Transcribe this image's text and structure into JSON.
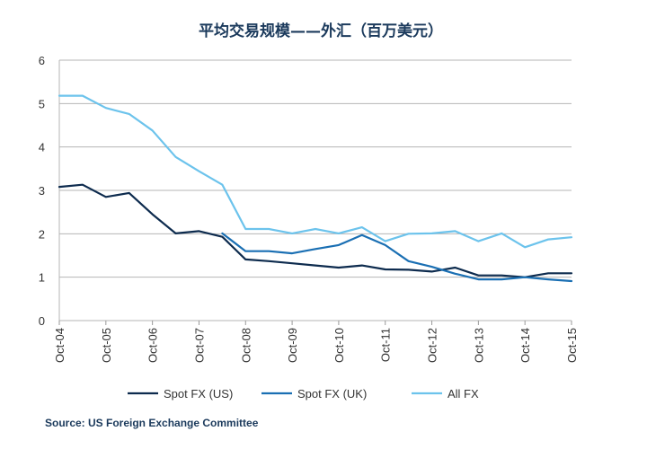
{
  "chart_data": {
    "type": "line",
    "title": "平均交易规模——外汇（百万美元）",
    "xlabel": "",
    "ylabel": "",
    "ylim": [
      0,
      6
    ],
    "yticks": [
      "0",
      "1",
      "2",
      "3",
      "4",
      "5",
      "6"
    ],
    "xlim": [
      0,
      11
    ],
    "xticks": [
      {
        "label": "Oct-04",
        "x": 0
      },
      {
        "label": "Oct-05",
        "x": 1
      },
      {
        "label": "Oct-06",
        "x": 2
      },
      {
        "label": "Oct-07",
        "x": 3
      },
      {
        "label": "Oct-08",
        "x": 4
      },
      {
        "label": "Oct-09",
        "x": 5
      },
      {
        "label": "Oct-10",
        "x": 6
      },
      {
        "label": "Oct-11",
        "x": 7
      },
      {
        "label": "Oct-12",
        "x": 8
      },
      {
        "label": "Oct-13",
        "x": 9
      },
      {
        "label": "Oct-14",
        "x": 10
      },
      {
        "label": "Oct-15",
        "x": 11
      }
    ],
    "grid": true,
    "series": [
      {
        "name": "Spot FX (US)",
        "color": "#0d2b4e",
        "x": [
          0,
          0.5,
          1,
          1.5,
          2,
          2.5,
          3,
          3.5,
          4,
          4.5,
          5,
          5.5,
          6,
          6.5,
          7,
          7.5,
          8,
          8.5,
          9,
          9.5,
          10,
          10.5,
          11
        ],
        "values": [
          3.08,
          3.13,
          2.85,
          2.94,
          2.45,
          2.01,
          2.06,
          1.93,
          1.41,
          1.37,
          1.32,
          1.27,
          1.22,
          1.27,
          1.18,
          1.17,
          1.13,
          1.22,
          1.04,
          1.04,
          1.0,
          1.09,
          1.09
        ]
      },
      {
        "name": "Spot FX (UK)",
        "color": "#1a6fb3",
        "x": [
          3.5,
          4,
          4.5,
          5,
          5.5,
          6,
          6.5,
          7,
          7.5,
          8,
          8.5,
          9,
          9.5,
          10,
          10.5,
          11
        ],
        "values": [
          2.01,
          1.6,
          1.6,
          1.55,
          1.65,
          1.74,
          1.97,
          1.74,
          1.37,
          1.24,
          1.08,
          0.95,
          0.95,
          1.0,
          0.95,
          0.91
        ]
      },
      {
        "name": "All FX",
        "color": "#6cc3ec",
        "x": [
          0,
          0.5,
          1,
          1.5,
          2,
          2.5,
          3,
          3.5,
          4,
          4.5,
          5,
          5.5,
          6,
          6.5,
          7,
          7.5,
          8,
          8.5,
          9,
          9.5,
          10,
          10.5,
          11
        ],
        "values": [
          5.18,
          5.18,
          4.9,
          4.76,
          4.38,
          3.77,
          3.44,
          3.13,
          2.11,
          2.11,
          2.01,
          2.11,
          2.01,
          2.15,
          1.83,
          2.0,
          2.01,
          2.06,
          1.83,
          2.01,
          1.69,
          1.87,
          1.92
        ]
      }
    ],
    "legend": "bottom",
    "source": "Source: US Foreign Exchange Committee"
  }
}
